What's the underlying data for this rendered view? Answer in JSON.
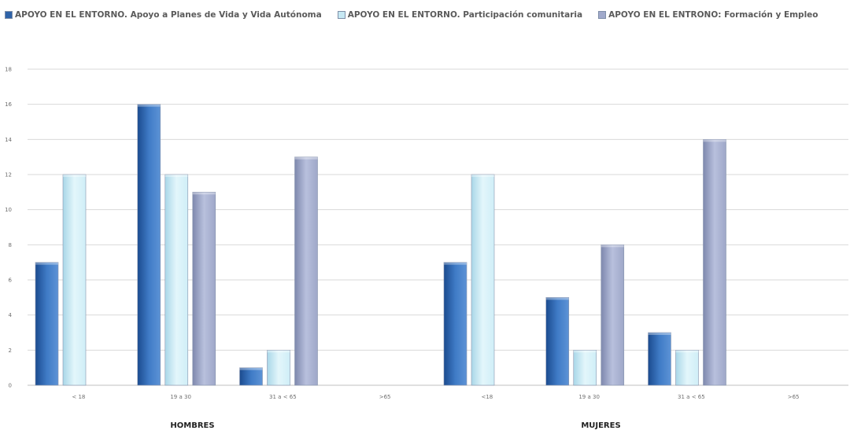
{
  "chart_data": {
    "type": "bar",
    "title": "",
    "xlabel": "",
    "ylabel": "",
    "ylim": [
      0,
      18
    ],
    "yticks": [
      0,
      2,
      4,
      6,
      8,
      10,
      12,
      14,
      16,
      18
    ],
    "grid": true,
    "legend_position": "top",
    "categories": [
      "< 18",
      "19 a 30",
      "31 a < 65",
      ">65",
      "<18",
      "19 a 30",
      "31 a < 65",
      ">65"
    ],
    "groups": [
      {
        "label": "HOMBRES",
        "span": [
          0,
          3
        ]
      },
      {
        "label": "MUJERES",
        "span": [
          4,
          7
        ]
      }
    ],
    "series": [
      {
        "name": "APOYO EN EL ENTORNO. Apoyo a Planes de Vida y Vida Autónoma",
        "color": "#2f63a8",
        "values": [
          7,
          16,
          1,
          0,
          7,
          5,
          3,
          0
        ]
      },
      {
        "name": "APOYO EN EL ENTORNO. Participación comunitaria",
        "color": "#c6e8f3",
        "values": [
          12,
          12,
          2,
          0,
          12,
          2,
          2,
          0
        ]
      },
      {
        "name": "APOYO EN EL ENTRONO: Formación y Empleo",
        "color": "#a0a9cb",
        "values": [
          0,
          11,
          13,
          0,
          0,
          8,
          14,
          0
        ]
      }
    ]
  }
}
